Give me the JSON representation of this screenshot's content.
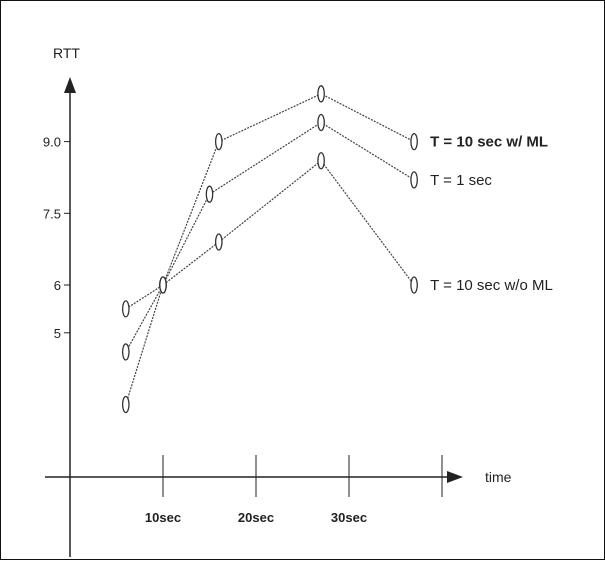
{
  "chart_data": {
    "type": "line",
    "title": "",
    "ylabel": "RTT",
    "xlabel": "time",
    "y_tick_labels": [
      {
        "label": "9.0",
        "value": 9.0
      },
      {
        "label": "7.5",
        "value": 7.5
      },
      {
        "label": "6",
        "value": 6
      },
      {
        "label": "5",
        "value": 5
      }
    ],
    "x_tick_labels": [
      {
        "label": "10sec",
        "value": 10
      },
      {
        "label": "20sec",
        "value": 20
      },
      {
        "label": "30sec",
        "value": 30
      }
    ],
    "x_tick_marks": [
      10,
      20,
      30,
      40
    ],
    "xlim": [
      0,
      42
    ],
    "ylim": [
      2.2,
      11
    ],
    "series": [
      {
        "name": "T = 10 sec w/ ML",
        "bold": true,
        "x": [
          6,
          10,
          16,
          27,
          37
        ],
        "y": [
          3.5,
          6.0,
          9.0,
          10.0,
          9.0
        ]
      },
      {
        "name": "T = 1 sec",
        "bold": false,
        "x": [
          6,
          10,
          15,
          27,
          37
        ],
        "y": [
          4.6,
          6.0,
          7.9,
          9.4,
          8.2
        ]
      },
      {
        "name": "T = 10 sec w/o ML",
        "bold": false,
        "x": [
          6,
          10,
          16,
          27,
          37
        ],
        "y": [
          5.5,
          6.0,
          6.9,
          8.6,
          6.0
        ]
      }
    ],
    "grid": false,
    "legend": "inline labels at line ends"
  }
}
